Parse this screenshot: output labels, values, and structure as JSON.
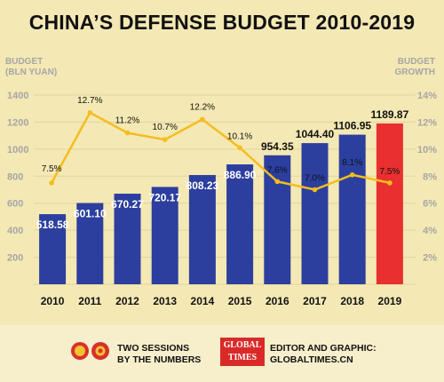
{
  "title": "CHINA’S DEFENSE BUDGET 2010-2019",
  "left_axis_title": [
    "BUDGET",
    "(BLN YUAN)"
  ],
  "right_axis_title": [
    "BUDGET",
    "GROWTH"
  ],
  "footer": {
    "left_text": [
      "TWO SESSIONS",
      "BY THE NUMBERS"
    ],
    "logo_text": [
      "GLOBAL",
      "TIMES"
    ],
    "right_text": [
      "EDITOR AND GRAPHIC:",
      "GLOBALTIMES.CN"
    ]
  },
  "colors": {
    "bar": "#2c3f9f",
    "highlight_bar": "#e9302e",
    "line": "#f5bd1d",
    "grid": "#e3d49b",
    "background": "#f4e8b4"
  },
  "chart_data": {
    "type": "bar",
    "title": "CHINA’S DEFENSE BUDGET 2010-2019",
    "categories": [
      "2010",
      "2011",
      "2012",
      "2013",
      "2014",
      "2015",
      "2016",
      "2017",
      "2018",
      "2019"
    ],
    "values": [
      518.58,
      601.1,
      670.27,
      720.17,
      808.23,
      886.9,
      954.35,
      1044.4,
      1106.95,
      1189.87
    ],
    "value_labels": [
      "518.58",
      "601.10",
      "670.27",
      "720.17",
      "808.23",
      "886.90",
      "954.35",
      "1044.40",
      "1106.95",
      "1189.87"
    ],
    "highlight_category": "2019",
    "ylim": [
      0,
      1400
    ],
    "yticks": [
      200,
      400,
      600,
      800,
      1000,
      1200,
      1400
    ],
    "growth": {
      "type": "line",
      "values": [
        7.5,
        12.7,
        11.2,
        10.7,
        12.2,
        10.1,
        7.6,
        7.0,
        8.1,
        7.5
      ],
      "labels": [
        "7.5%",
        "12.7%",
        "11.2%",
        "10.7%",
        "12.2%",
        "10.1%",
        "7.6%",
        "7.0%",
        "8.1%",
        "7.5%"
      ],
      "ylim": [
        0,
        14
      ],
      "ytick_labels": [
        "2%",
        "4%",
        "6%",
        "8%",
        "10%",
        "12%",
        "14%"
      ]
    },
    "grid": true
  }
}
